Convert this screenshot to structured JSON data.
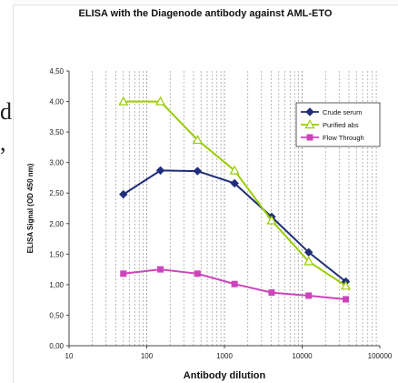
{
  "page_fragments": [
    "d",
    ","
  ],
  "chart_data": {
    "type": "line",
    "title": "ELISA with the Diagenode antibody against AML-ETO",
    "xlabel": "Antibody dilution",
    "ylabel": "ELISA Signal (OD 450 nm)",
    "xscale": "log",
    "xlim": [
      10,
      100000
    ],
    "ylim": [
      0,
      4.5
    ],
    "x_ticks": [
      "10",
      "100",
      "1000",
      "10000",
      "100000"
    ],
    "y_ticks": [
      "0,00",
      "0,50",
      "1,00",
      "1,50",
      "2,00",
      "2,50",
      "3,00",
      "3,50",
      "4,00",
      "4,50"
    ],
    "y_tick_values": [
      0,
      0.5,
      1,
      1.5,
      2,
      2.5,
      3,
      3.5,
      4,
      4.5
    ],
    "x": [
      50,
      150,
      450,
      1350,
      4050,
      12150,
      36450
    ],
    "grid": "vertical dashed lines at log subdivisions",
    "legend_position": "top-right",
    "series": [
      {
        "name": "Crude serum",
        "color": "#1f2d7a",
        "marker": "diamond",
        "values": [
          2.48,
          2.87,
          2.86,
          2.66,
          2.11,
          1.53,
          1.05
        ]
      },
      {
        "name": "Purified abs",
        "color": "#99cc00",
        "marker": "triangle",
        "values": [
          4.0,
          4.0,
          3.37,
          2.87,
          2.05,
          1.38,
          0.98
        ]
      },
      {
        "name": "Flow Through",
        "color": "#cc44bb",
        "marker": "square",
        "values": [
          1.18,
          1.25,
          1.18,
          1.01,
          0.87,
          0.82,
          0.76
        ]
      }
    ]
  }
}
